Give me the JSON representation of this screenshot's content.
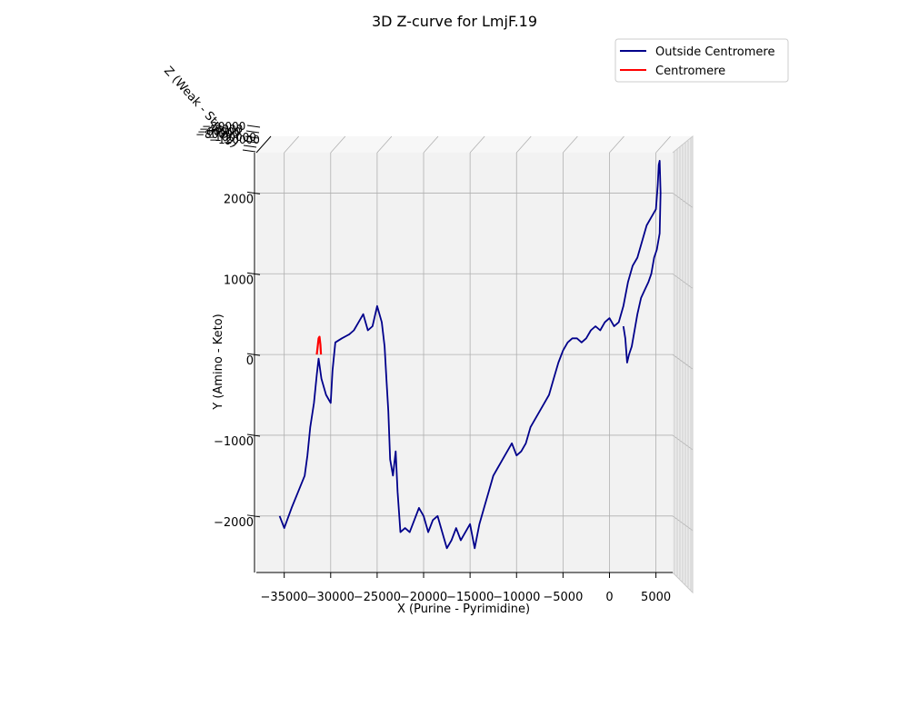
{
  "chart_data": {
    "type": "line",
    "title": "3D Z-curve for LmjF.19",
    "xlabel": "X (Purine - Pyrimidine)",
    "ylabel": "Y (Amino - Keto)",
    "zlabel": "Z (Weak - Strong)",
    "xlim": [
      -38000,
      6800
    ],
    "ylim": [
      -2700,
      2500
    ],
    "xticks": [
      -35000,
      -30000,
      -25000,
      -20000,
      -15000,
      -10000,
      -5000,
      0,
      5000
    ],
    "xtick_labels": [
      "−35000",
      "−30000",
      "−25000",
      "−20000",
      "−15000",
      "−10000",
      "−5000",
      "0",
      "5000"
    ],
    "yticks": [
      -2000,
      -1000,
      0,
      1000,
      2000
    ],
    "ytick_labels": [
      "−2000",
      "−1000",
      "0",
      "1000",
      "2000"
    ],
    "ztick_labels": [
      "−20000",
      "−40000",
      "−60000",
      "−80000",
      "−100000",
      "−120000"
    ],
    "grid": true,
    "legend_position": "top-right",
    "legend": [
      "Outside Centromere",
      "Centromere"
    ],
    "colors": {
      "outside": "#00008b",
      "centromere": "#ff0000",
      "pane": "#f2f2f2",
      "grid": "#b0b0b0"
    },
    "series": [
      {
        "name": "Outside Centromere",
        "color": "#00008b",
        "points": [
          [
            -35500,
            -2000
          ],
          [
            -35000,
            -2150
          ],
          [
            -34200,
            -1900
          ],
          [
            -33500,
            -1700
          ],
          [
            -32800,
            -1500
          ],
          [
            -32500,
            -1250
          ],
          [
            -32200,
            -900
          ],
          [
            -31800,
            -600
          ],
          [
            -31500,
            -250
          ],
          [
            -31300,
            -50
          ],
          [
            -31000,
            -300
          ],
          [
            -30500,
            -500
          ],
          [
            -30000,
            -600
          ],
          [
            -29800,
            -200
          ],
          [
            -29500,
            150
          ],
          [
            -28800,
            200
          ],
          [
            -28000,
            250
          ],
          [
            -27500,
            300
          ],
          [
            -27000,
            400
          ],
          [
            -26500,
            500
          ],
          [
            -26000,
            300
          ],
          [
            -25500,
            350
          ],
          [
            -25000,
            600
          ],
          [
            -24500,
            400
          ],
          [
            -24200,
            100
          ],
          [
            -24000,
            -300
          ],
          [
            -23800,
            -700
          ],
          [
            -23600,
            -1300
          ],
          [
            -23300,
            -1500
          ],
          [
            -23000,
            -1200
          ],
          [
            -22800,
            -1700
          ],
          [
            -22500,
            -2200
          ],
          [
            -22000,
            -2150
          ],
          [
            -21500,
            -2200
          ],
          [
            -21000,
            -2050
          ],
          [
            -20500,
            -1900
          ],
          [
            -20000,
            -2000
          ],
          [
            -19500,
            -2200
          ],
          [
            -19000,
            -2050
          ],
          [
            -18500,
            -2000
          ],
          [
            -18000,
            -2200
          ],
          [
            -17500,
            -2400
          ],
          [
            -17000,
            -2300
          ],
          [
            -16500,
            -2150
          ],
          [
            -16000,
            -2300
          ],
          [
            -15500,
            -2200
          ],
          [
            -15000,
            -2100
          ],
          [
            -14500,
            -2400
          ],
          [
            -14000,
            -2100
          ],
          [
            -13500,
            -1900
          ],
          [
            -13000,
            -1700
          ],
          [
            -12500,
            -1500
          ],
          [
            -12000,
            -1400
          ],
          [
            -11500,
            -1300
          ],
          [
            -11000,
            -1200
          ],
          [
            -10500,
            -1100
          ],
          [
            -10000,
            -1250
          ],
          [
            -9500,
            -1200
          ],
          [
            -9000,
            -1100
          ],
          [
            -8500,
            -900
          ],
          [
            -8000,
            -800
          ],
          [
            -7500,
            -700
          ],
          [
            -7000,
            -600
          ],
          [
            -6500,
            -500
          ],
          [
            -6000,
            -300
          ],
          [
            -5500,
            -100
          ],
          [
            -5000,
            50
          ],
          [
            -4500,
            150
          ],
          [
            -4000,
            200
          ],
          [
            -3500,
            200
          ],
          [
            -3000,
            150
          ],
          [
            -2500,
            200
          ],
          [
            -2000,
            300
          ],
          [
            -1500,
            350
          ],
          [
            -1000,
            300
          ],
          [
            -500,
            400
          ],
          [
            0,
            450
          ],
          [
            500,
            350
          ],
          [
            1000,
            400
          ],
          [
            1500,
            600
          ],
          [
            2000,
            900
          ],
          [
            2500,
            1100
          ],
          [
            3000,
            1200
          ],
          [
            3500,
            1400
          ],
          [
            4000,
            1600
          ],
          [
            4500,
            1700
          ],
          [
            5000,
            1800
          ],
          [
            5200,
            2100
          ],
          [
            5300,
            2350
          ],
          [
            5400,
            2400
          ],
          [
            5500,
            2000
          ],
          [
            5400,
            1500
          ],
          [
            5100,
            1300
          ],
          [
            4800,
            1200
          ],
          [
            4500,
            1000
          ],
          [
            4200,
            900
          ],
          [
            3800,
            800
          ],
          [
            3400,
            700
          ],
          [
            3000,
            500
          ],
          [
            2700,
            300
          ],
          [
            2400,
            100
          ],
          [
            2100,
            0
          ],
          [
            1900,
            -100
          ],
          [
            1700,
            200
          ],
          [
            1500,
            350
          ]
        ]
      },
      {
        "name": "Centromere",
        "color": "#ff0000",
        "points": [
          [
            -31500,
            0
          ],
          [
            -31400,
            100
          ],
          [
            -31300,
            200
          ],
          [
            -31200,
            220
          ],
          [
            -31100,
            120
          ],
          [
            -31050,
            0
          ]
        ]
      }
    ]
  }
}
